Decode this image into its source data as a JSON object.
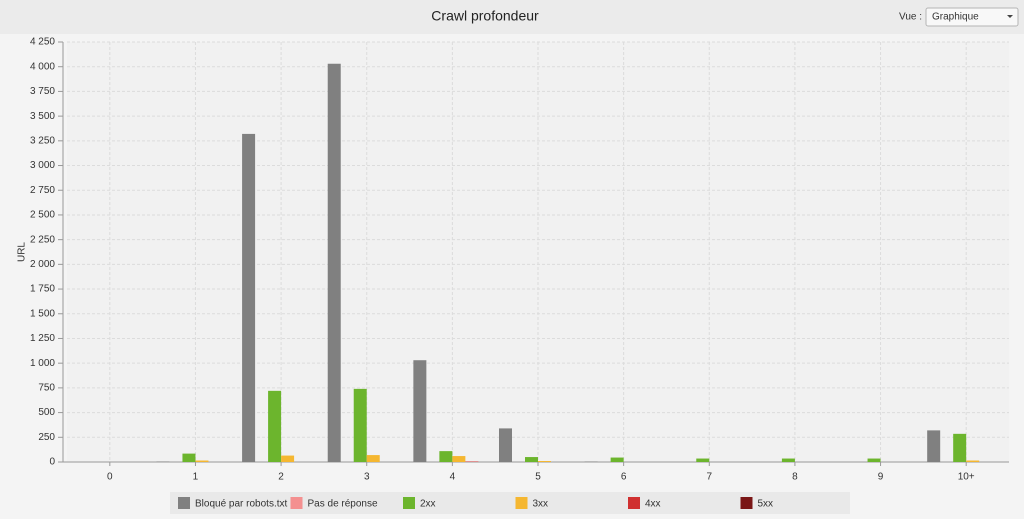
{
  "view_selector": {
    "label": "Vue :",
    "value": "Graphique"
  },
  "chart_data": {
    "type": "bar",
    "title": "Crawl profondeur",
    "y_label": "URL",
    "categories": [
      "0",
      "1",
      "2",
      "3",
      "4",
      "5",
      "6",
      "7",
      "8",
      "9",
      "10+"
    ],
    "series": [
      {
        "name": "Bloqué par robots.txt",
        "color": "#808080",
        "values": [
          0,
          5,
          3320,
          4030,
          1030,
          340,
          5,
          0,
          0,
          0,
          320
        ]
      },
      {
        "name": "Pas de réponse",
        "color": "#f49090",
        "values": [
          0,
          0,
          0,
          0,
          0,
          0,
          0,
          0,
          0,
          0,
          0
        ]
      },
      {
        "name": "2xx",
        "color": "#6cb52d",
        "values": [
          0,
          85,
          720,
          740,
          110,
          50,
          45,
          35,
          35,
          35,
          285
        ]
      },
      {
        "name": "3xx",
        "color": "#f5b731",
        "values": [
          0,
          15,
          65,
          70,
          60,
          10,
          0,
          0,
          0,
          0,
          15
        ]
      },
      {
        "name": "4xx",
        "color": "#d03030",
        "values": [
          0,
          0,
          0,
          0,
          5,
          0,
          0,
          0,
          0,
          0,
          0
        ]
      },
      {
        "name": "5xx",
        "color": "#7a1616",
        "values": [
          0,
          0,
          0,
          0,
          0,
          0,
          0,
          0,
          0,
          0,
          0
        ]
      }
    ],
    "ylim": [
      0,
      4250
    ],
    "yticks": [
      0,
      250,
      500,
      750,
      {
        "value": 1000,
        "label": "1 000"
      },
      {
        "value": 1250,
        "label": "1 250"
      },
      {
        "value": 1500,
        "label": "1 500"
      },
      {
        "value": 1750,
        "label": "1 750"
      },
      {
        "value": 2000,
        "label": "2 000"
      },
      {
        "value": 2250,
        "label": "2 250"
      },
      {
        "value": 2500,
        "label": "2 500"
      },
      {
        "value": 2750,
        "label": "2 750"
      },
      {
        "value": 3000,
        "label": "3 000"
      },
      {
        "value": 3250,
        "label": "3 250"
      },
      {
        "value": 3500,
        "label": "3 500"
      },
      {
        "value": 3750,
        "label": "3 750"
      },
      {
        "value": 4000,
        "label": "4 000"
      },
      {
        "value": 4250,
        "label": "4 250"
      }
    ],
    "grid": true,
    "legend": "bottom"
  }
}
